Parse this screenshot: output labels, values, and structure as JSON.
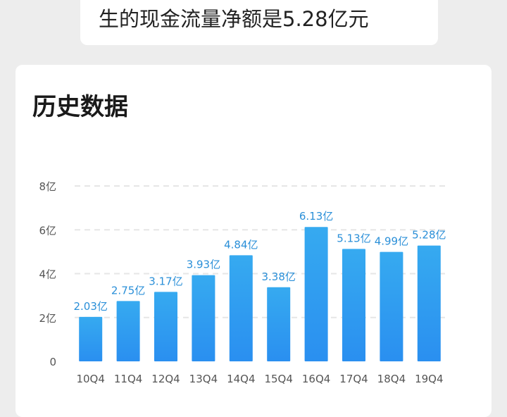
{
  "summary_text": "生的现金流量净额是5.28亿元",
  "section_title": "历史数据",
  "chart_data": {
    "type": "bar",
    "title": "",
    "xlabel": "",
    "ylabel": "",
    "categories": [
      "10Q4",
      "11Q4",
      "12Q4",
      "13Q4",
      "14Q4",
      "15Q4",
      "16Q4",
      "17Q4",
      "18Q4",
      "19Q4"
    ],
    "values": [
      2.03,
      2.75,
      3.17,
      3.93,
      4.84,
      3.38,
      6.13,
      5.13,
      4.99,
      5.28
    ],
    "data_labels": [
      "2.03亿",
      "2.75亿",
      "3.17亿",
      "3.93亿",
      "4.84亿",
      "3.38亿",
      "6.13亿",
      "5.13亿",
      "4.99亿",
      "5.28亿"
    ],
    "y_ticks": [
      0,
      2,
      4,
      6,
      8
    ],
    "y_tick_labels": [
      "0",
      "2亿",
      "4亿",
      "6亿",
      "8亿"
    ],
    "ylim": [
      0,
      8
    ],
    "grid": true,
    "bar_color_top": "#36aaf0",
    "bar_color_bottom": "#2a8ff0",
    "label_color": "#2a8fd8"
  }
}
